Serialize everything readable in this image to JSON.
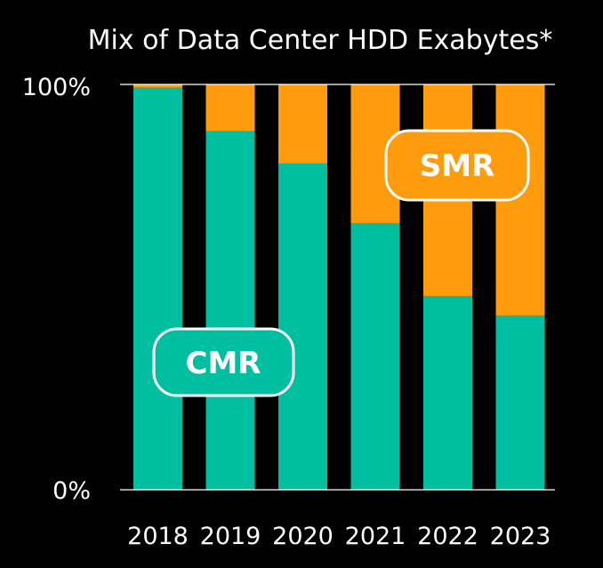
{
  "chart_data": {
    "type": "bar",
    "stacked": true,
    "title": "Mix of Data Center HDD Exabytes*",
    "categories": [
      "2018",
      "2019",
      "2020",
      "2021",
      "2022",
      "2023"
    ],
    "series": [
      {
        "name": "CMR",
        "values": [
          99.2,
          88.5,
          80.5,
          65.8,
          47.8,
          43.0
        ]
      },
      {
        "name": "SMR",
        "values": [
          0.8,
          11.5,
          19.5,
          34.2,
          52.2,
          57.0
        ]
      }
    ],
    "ylim": [
      0,
      100
    ],
    "yticks": [
      "0%",
      "100%"
    ],
    "colors": {
      "CMR": "#00BFA0",
      "SMR": "#FF9C0D",
      "background": "#000000",
      "text": "#ffffff"
    },
    "grid": false,
    "legend": "in-chart labels"
  }
}
